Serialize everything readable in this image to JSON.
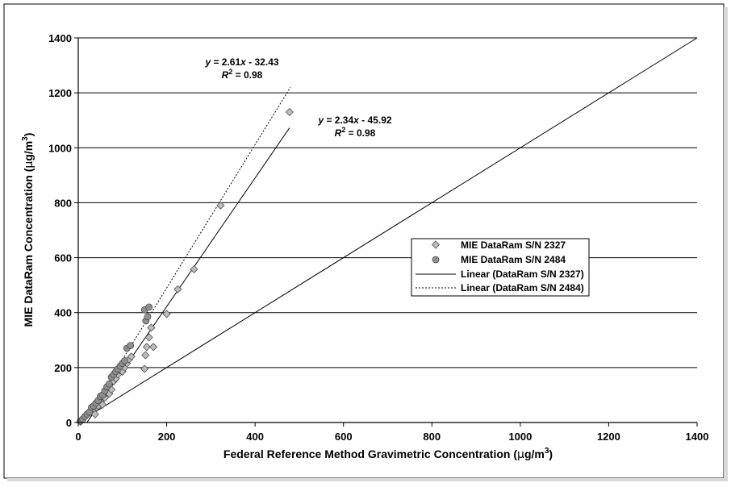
{
  "chart_data": {
    "type": "scatter",
    "xlabel_parts": [
      "Federal Reference Method Gravimetric Concentration (",
      "µ",
      "g/m",
      "3",
      ")"
    ],
    "ylabel_parts": [
      "MIE DataRam Concentration (",
      "µ",
      "g/m",
      "3",
      ")"
    ],
    "xlim": [
      0,
      1400
    ],
    "ylim": [
      0,
      1400
    ],
    "xticks": [
      "0",
      "200",
      "400",
      "600",
      "800",
      "1000",
      "1200",
      "1400"
    ],
    "yticks": [
      "0",
      "200",
      "400",
      "600",
      "800",
      "1000",
      "1200",
      "1400"
    ],
    "grid": "horizontal",
    "legend_position": "right",
    "series": [
      {
        "name": "MIE DataRam S/N 2327",
        "marker": "diamond",
        "color": "#bdbdbd",
        "points": [
          [
            5,
            3
          ],
          [
            8,
            8
          ],
          [
            12,
            15
          ],
          [
            15,
            20
          ],
          [
            20,
            28
          ],
          [
            25,
            35
          ],
          [
            30,
            40
          ],
          [
            35,
            50
          ],
          [
            38,
            30
          ],
          [
            42,
            55
          ],
          [
            45,
            60
          ],
          [
            50,
            75
          ],
          [
            55,
            65
          ],
          [
            60,
            90
          ],
          [
            65,
            110
          ],
          [
            70,
            105
          ],
          [
            75,
            120
          ],
          [
            80,
            150
          ],
          [
            85,
            160
          ],
          [
            90,
            175
          ],
          [
            95,
            190
          ],
          [
            100,
            185
          ],
          [
            105,
            200
          ],
          [
            110,
            215
          ],
          [
            115,
            230
          ],
          [
            120,
            240
          ],
          [
            150,
            195
          ],
          [
            152,
            245
          ],
          [
            155,
            275
          ],
          [
            160,
            310
          ],
          [
            165,
            345
          ],
          [
            170,
            275
          ],
          [
            200,
            395
          ],
          [
            225,
            485
          ],
          [
            262,
            558
          ],
          [
            322,
            790
          ],
          [
            478,
            1130
          ]
        ]
      },
      {
        "name": "MIE DataRam S/N 2484",
        "marker": "circle",
        "color": "#8f8f8f",
        "points": [
          [
            5,
            5
          ],
          [
            10,
            12
          ],
          [
            15,
            22
          ],
          [
            20,
            30
          ],
          [
            25,
            38
          ],
          [
            30,
            55
          ],
          [
            35,
            60
          ],
          [
            40,
            70
          ],
          [
            45,
            80
          ],
          [
            50,
            95
          ],
          [
            55,
            100
          ],
          [
            60,
            115
          ],
          [
            65,
            130
          ],
          [
            70,
            140
          ],
          [
            75,
            165
          ],
          [
            80,
            175
          ],
          [
            85,
            185
          ],
          [
            90,
            195
          ],
          [
            95,
            205
          ],
          [
            100,
            215
          ],
          [
            105,
            225
          ],
          [
            110,
            270
          ],
          [
            118,
            280
          ],
          [
            150,
            410
          ],
          [
            153,
            370
          ],
          [
            157,
            385
          ],
          [
            160,
            420
          ]
        ]
      }
    ],
    "trendlines": [
      {
        "name": "Linear (DataRam S/N 2327)",
        "style": "solid",
        "slope": 2.34,
        "intercept": -45.92,
        "x_range": [
          20,
          478
        ],
        "equation_parts": [
          "y",
          " = 2.34",
          "x",
          " - 45.92"
        ],
        "r2_value": " = 0.98"
      },
      {
        "name": "Linear (DataRam S/N 2484)",
        "style": "dotted",
        "slope": 2.61,
        "intercept": -32.43,
        "x_range": [
          12,
          480
        ],
        "equation_parts": [
          "y",
          " = 2.61",
          "x",
          " - 32.43"
        ],
        "r2_value": " = 0.98"
      }
    ],
    "reference_line": {
      "style": "solid",
      "x": [
        0,
        1400
      ],
      "y": [
        0,
        1400
      ]
    }
  }
}
